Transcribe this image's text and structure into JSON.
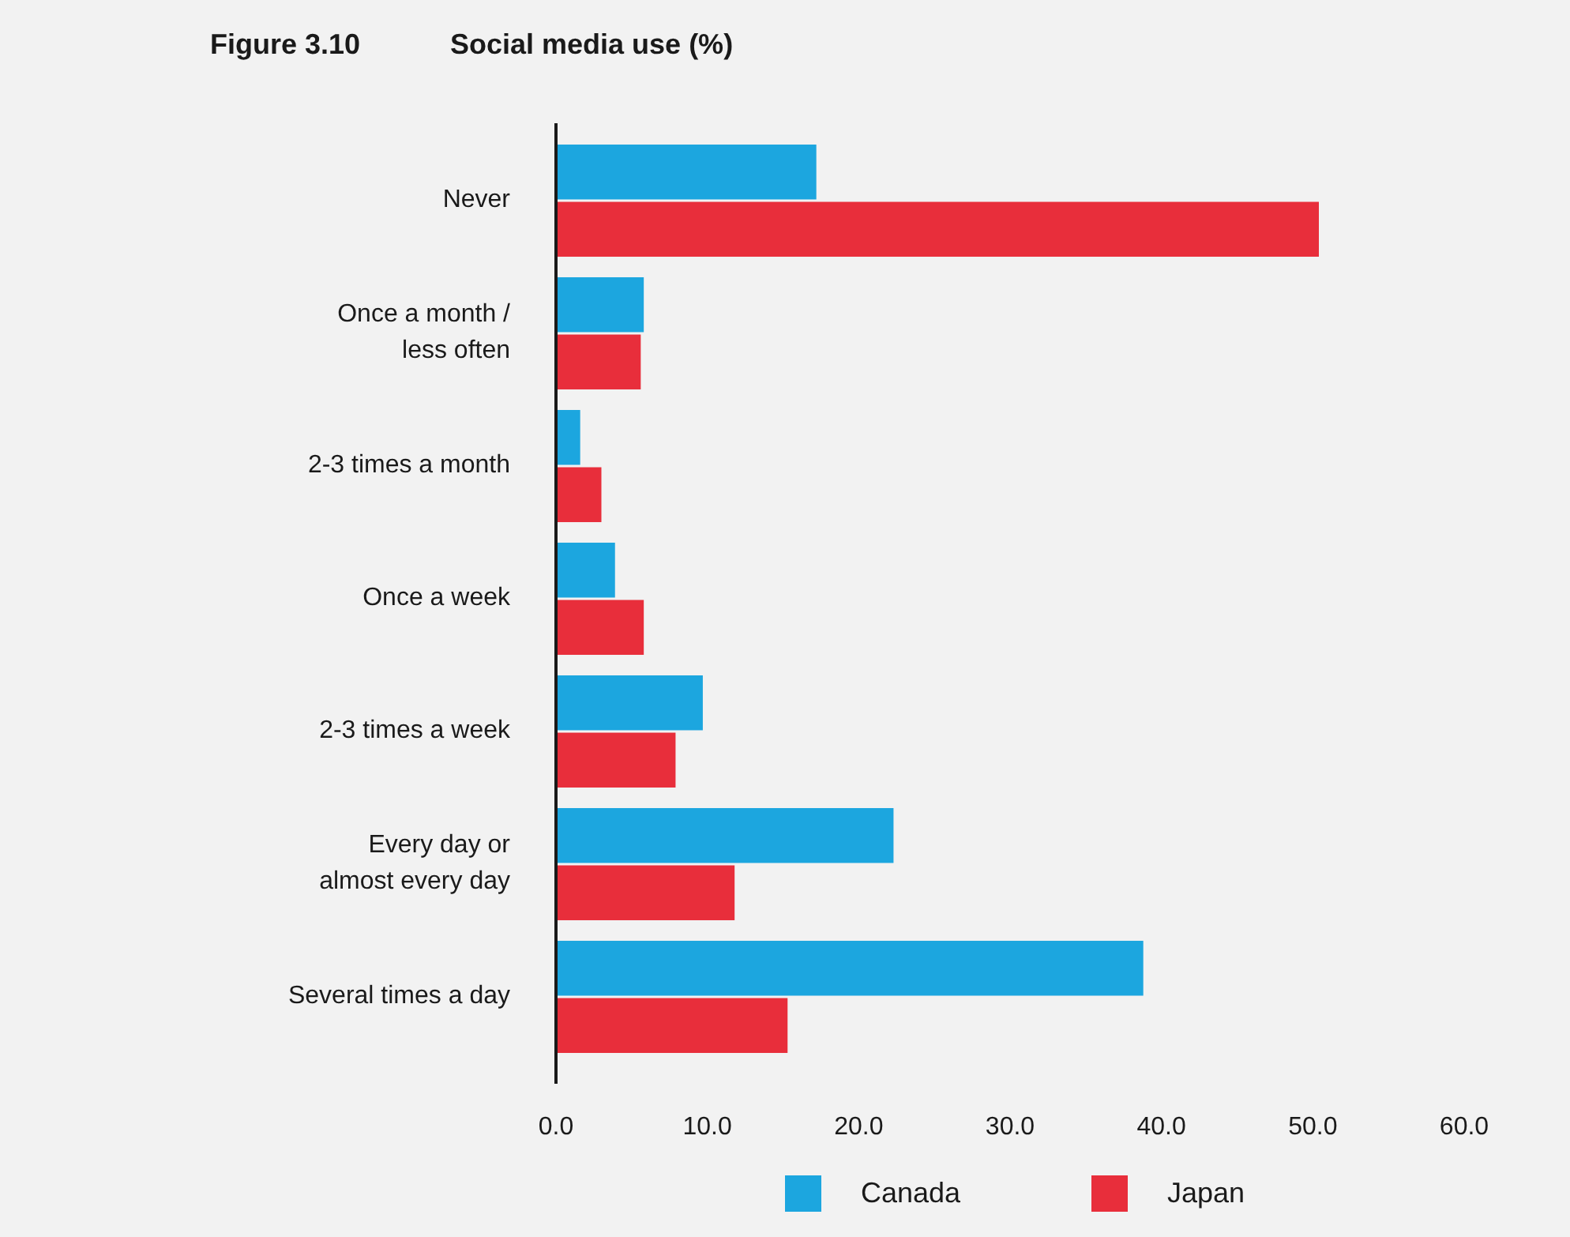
{
  "chart_data": {
    "type": "bar",
    "orientation": "horizontal",
    "title": "Figure 3.10",
    "subtitle": "Social media use (%)",
    "categories": [
      "Never",
      "Once a month /\nless often",
      "2-3 times a month",
      "Once a week",
      "2-3 times a week",
      "Every day or\nalmost every day",
      "Several times a day"
    ],
    "series": [
      {
        "name": "Canada",
        "color": "#1ca6df",
        "values": [
          17.2,
          5.8,
          1.6,
          3.9,
          9.7,
          22.3,
          38.8
        ]
      },
      {
        "name": "Japan",
        "color": "#e82e3b",
        "values": [
          50.4,
          5.6,
          3.0,
          5.8,
          7.9,
          11.8,
          15.3
        ]
      }
    ],
    "xlim": [
      0,
      60
    ],
    "xticks": [
      {
        "value": 0,
        "label": "0.0"
      },
      {
        "value": 10,
        "label": "10.0"
      },
      {
        "value": 20,
        "label": "20.0"
      },
      {
        "value": 30,
        "label": "30.0"
      },
      {
        "value": 40,
        "label": "40.0"
      },
      {
        "value": 50,
        "label": "50.0"
      },
      {
        "value": 60,
        "label": "60.0"
      }
    ],
    "grid": false,
    "legend": "bottom"
  }
}
